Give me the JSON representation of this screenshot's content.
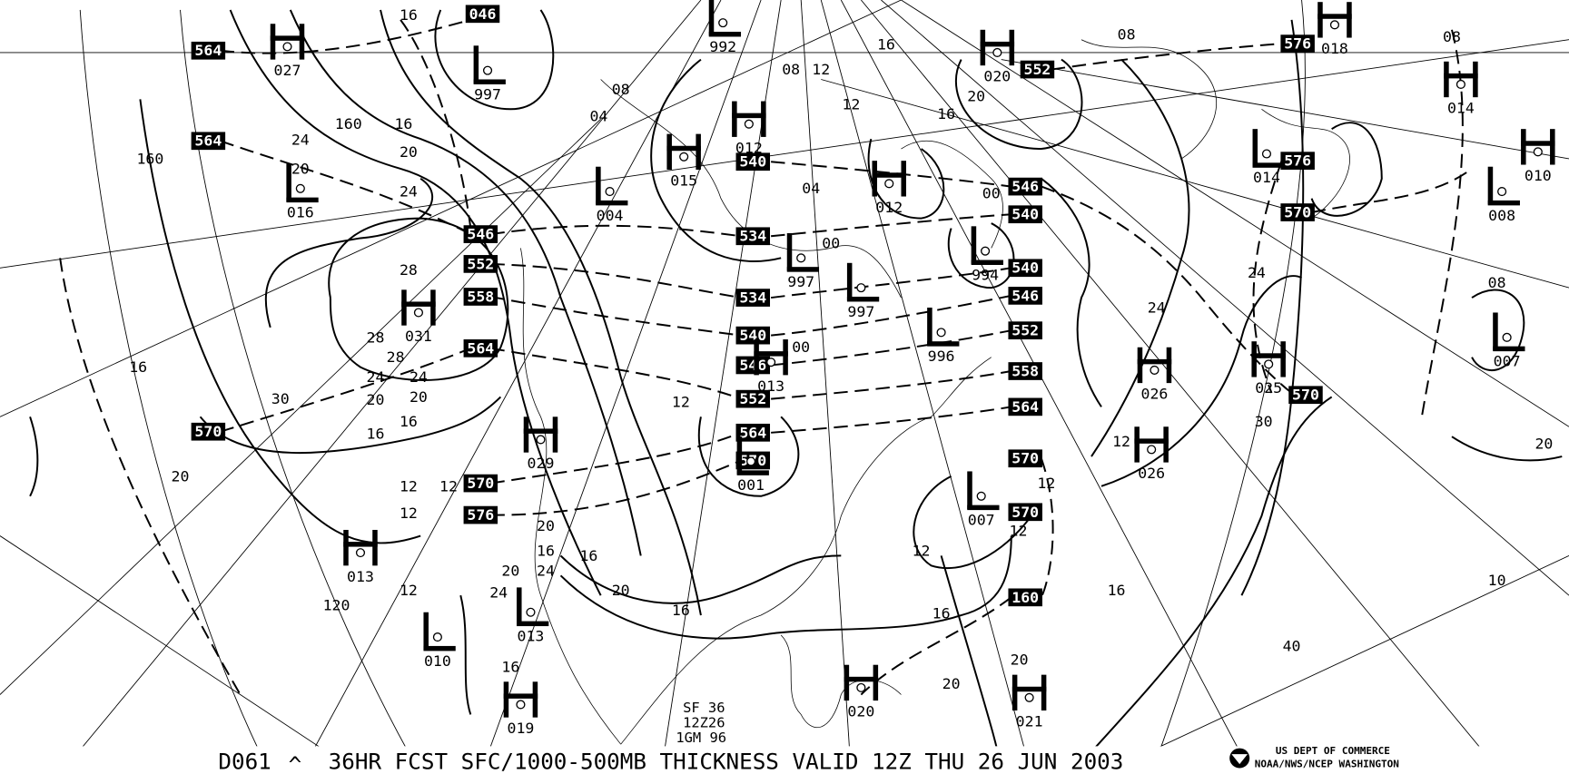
{
  "caption": {
    "product_id": "D061",
    "caret": "^",
    "title": "36HR FCST SFC/1000-500MB THICKNESS VALID 12Z THU 26 JUN 2003"
  },
  "agency": {
    "line1": "US DEPT OF COMMERCE",
    "line2": "NOAA/NWS/NCEP WASHINGTON",
    "logo": "noaa-logo"
  },
  "stamp": [
    "SF 36",
    "12Z26",
    "1GM 96"
  ],
  "pressure_centers": [
    {
      "type": "H",
      "value": "027"
    },
    {
      "type": "L",
      "value": "997"
    },
    {
      "type": "L",
      "value": "992"
    },
    {
      "type": "H",
      "value": "012"
    },
    {
      "type": "H",
      "value": "015"
    },
    {
      "type": "L",
      "value": "004"
    },
    {
      "type": "H",
      "value": "020"
    },
    {
      "type": "H",
      "value": "018"
    },
    {
      "type": "H",
      "value": "014"
    },
    {
      "type": "L",
      "value": "014"
    },
    {
      "type": "H",
      "value": "010"
    },
    {
      "type": "L",
      "value": "008"
    },
    {
      "type": "H",
      "value": "012"
    },
    {
      "type": "L",
      "value": "997"
    },
    {
      "type": "L",
      "value": "997"
    },
    {
      "type": "L",
      "value": "994"
    },
    {
      "type": "L",
      "value": "996"
    },
    {
      "type": "L",
      "value": "016"
    },
    {
      "type": "H",
      "value": "031"
    },
    {
      "type": "H",
      "value": "029"
    },
    {
      "type": "H",
      "value": "013"
    },
    {
      "type": "L",
      "value": "001"
    },
    {
      "type": "L",
      "value": "007"
    },
    {
      "type": "H",
      "value": "026"
    },
    {
      "type": "H",
      "value": "025"
    },
    {
      "type": "L",
      "value": "007"
    },
    {
      "type": "H",
      "value": "026"
    },
    {
      "type": "H",
      "value": "013"
    },
    {
      "type": "L",
      "value": "013"
    },
    {
      "type": "L",
      "value": "010"
    },
    {
      "type": "H",
      "value": "019"
    },
    {
      "type": "H",
      "value": "020"
    },
    {
      "type": "H",
      "value": "021"
    }
  ],
  "thickness_labels": [
    "564",
    "564",
    "046",
    "546",
    "552",
    "558",
    "564",
    "570",
    "570",
    "576",
    "540",
    "534",
    "534",
    "540",
    "546",
    "552",
    "564",
    "570",
    "552",
    "546",
    "540",
    "540",
    "546",
    "552",
    "558",
    "564",
    "570",
    "570",
    "160",
    "576",
    "576",
    "570",
    "570"
  ],
  "isobar_labels": [
    "16",
    "16",
    "20",
    "24",
    "20",
    "24",
    "28",
    "28",
    "28",
    "24",
    "24",
    "20",
    "20",
    "16",
    "16",
    "160",
    "160",
    "16",
    "20",
    "30",
    "12",
    "12",
    "12",
    "12",
    "120",
    "16",
    "16",
    "20",
    "24",
    "20",
    "16",
    "12",
    "08",
    "08",
    "04",
    "04",
    "00",
    "00",
    "12",
    "12",
    "16",
    "16",
    "20",
    "24",
    "20",
    "16",
    "24",
    "08",
    "12",
    "12",
    "16",
    "16",
    "30",
    "20",
    "20",
    "40",
    "10",
    "20",
    "24",
    "08",
    "08",
    "00",
    "12",
    "12"
  ],
  "colors": {
    "ink": "#000000",
    "background": "#ffffff"
  }
}
